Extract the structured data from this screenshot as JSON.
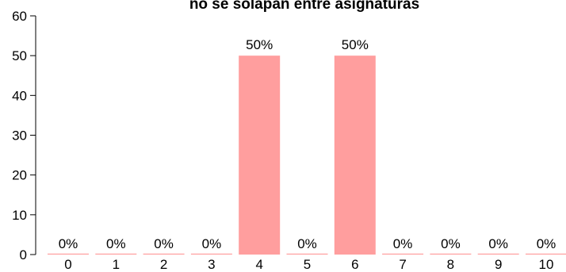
{
  "chart_data": {
    "type": "bar",
    "title": "no se solapan entre asignaturas",
    "categories": [
      "0",
      "1",
      "2",
      "3",
      "4",
      "5",
      "6",
      "7",
      "8",
      "9",
      "10"
    ],
    "values": [
      0,
      0,
      0,
      0,
      50,
      0,
      50,
      0,
      0,
      0,
      0
    ],
    "data_labels": [
      "0%",
      "0%",
      "0%",
      "0%",
      "50%",
      "0%",
      "50%",
      "0%",
      "0%",
      "0%",
      "0%"
    ],
    "ylim": [
      0,
      60
    ],
    "yticks": [
      0,
      10,
      20,
      30,
      40,
      50,
      60
    ],
    "xlabel": "",
    "ylabel": "",
    "grid": false,
    "bar_color": "#FF9E9E"
  }
}
